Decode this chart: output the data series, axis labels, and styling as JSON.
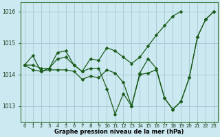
{
  "xlabel": "Graphe pression niveau de la mer (hPa)",
  "background_color": "#cce8f0",
  "grid_color": "#aaccd8",
  "line_color": "#1a5c1a",
  "marker": "D",
  "markersize": 2.5,
  "linewidth": 0.9,
  "x": [
    0,
    1,
    2,
    3,
    4,
    5,
    6,
    7,
    8,
    9,
    10,
    11,
    12,
    13,
    14,
    15,
    16,
    17,
    18,
    19,
    20,
    21,
    22,
    23
  ],
  "series": [
    [
      1014.3,
      1014.15,
      1014.1,
      1014.15,
      1014.15,
      1014.15,
      1014.1,
      1013.85,
      1013.95,
      1013.9,
      1014.15,
      1014.05,
      1013.75,
      1013.0,
      1014.0,
      1014.05,
      1014.15,
      1013.25,
      1012.9,
      1013.15,
      1013.9,
      1015.2,
      1015.75,
      1016.0
    ],
    [
      1014.3,
      1014.6,
      1014.1,
      1014.2,
      1014.7,
      1014.75,
      1014.3,
      1014.1,
      1014.2,
      1014.2,
      1013.55,
      1012.75,
      1013.4,
      1013.0,
      1014.05,
      1014.5,
      1014.2,
      1013.25,
      1012.9,
      1013.15,
      1013.9,
      1015.2,
      1015.75,
      1016.0
    ],
    [
      1014.3,
      1014.3,
      1014.2,
      1014.2,
      1014.5,
      1014.55,
      1014.3,
      1014.1,
      1014.5,
      1014.45,
      1014.85,
      1014.75,
      1014.55,
      1014.35,
      1014.55,
      1014.9,
      1015.25,
      1015.55,
      1015.85,
      1016.0,
      null,
      null,
      null,
      null
    ]
  ],
  "ylim": [
    1012.5,
    1016.3
  ],
  "yticks": [
    1013,
    1014,
    1015,
    1016
  ],
  "xticks": [
    0,
    1,
    2,
    3,
    4,
    5,
    6,
    7,
    8,
    9,
    10,
    11,
    12,
    13,
    14,
    15,
    16,
    17,
    18,
    19,
    20,
    21,
    22,
    23
  ],
  "xticklabels": [
    "0",
    "1",
    "2",
    "3",
    "4",
    "5",
    "6",
    "7",
    "8",
    "9",
    "10",
    "11",
    "12",
    "13",
    "14",
    "15",
    "16",
    "17",
    "18",
    "19",
    "20",
    "21",
    "22",
    "23"
  ]
}
